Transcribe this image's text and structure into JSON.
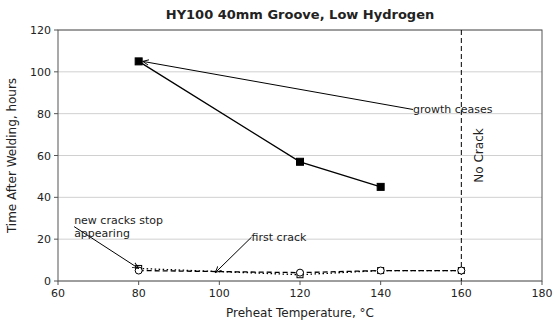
{
  "chart_data": {
    "type": "line",
    "title": "HY100 40mm Groove, Low Hydrogen",
    "x_label": "Preheat Temperature, °C",
    "y_label": "Time After Welding, hours",
    "xlim": [
      60,
      180
    ],
    "ylim": [
      0,
      120
    ],
    "xticks": [
      60,
      80,
      100,
      120,
      140,
      160,
      180
    ],
    "yticks": [
      0,
      20,
      40,
      60,
      80,
      100,
      120
    ],
    "grid": true,
    "background_color": "#ffffff",
    "series": [
      {
        "x": [
          80,
          120,
          140
        ],
        "values": [
          105,
          57,
          45
        ],
        "color": "#000000",
        "marker": "square",
        "line_style": "solid"
      },
      {
        "x": [
          80,
          120,
          140,
          160
        ],
        "values": [
          6,
          3,
          5,
          5
        ],
        "color": "#000000",
        "marker": "square-open",
        "line_style": "dotted"
      },
      {
        "x": [
          80,
          120,
          140,
          160
        ],
        "values": [
          5,
          4,
          5,
          5
        ],
        "color": "#000000",
        "marker": "circle-open",
        "line_style": "dashed"
      }
    ],
    "reference_line": {
      "x": 160,
      "label": "No Crack",
      "label_x": 163,
      "label_y": 60,
      "color": "#000000"
    },
    "annotations": [
      {
        "text": "growth ceases",
        "x": 148,
        "y": 82,
        "arrow_x": 81,
        "arrow_y": 105
      },
      {
        "text": "new cracks stop\nappearing",
        "x": 64,
        "y": 26,
        "arrow_x": 80,
        "arrow_y": 6
      },
      {
        "text": "first crack",
        "x": 108,
        "y": 21,
        "arrow_x": 99,
        "arrow_y": 4
      }
    ]
  }
}
